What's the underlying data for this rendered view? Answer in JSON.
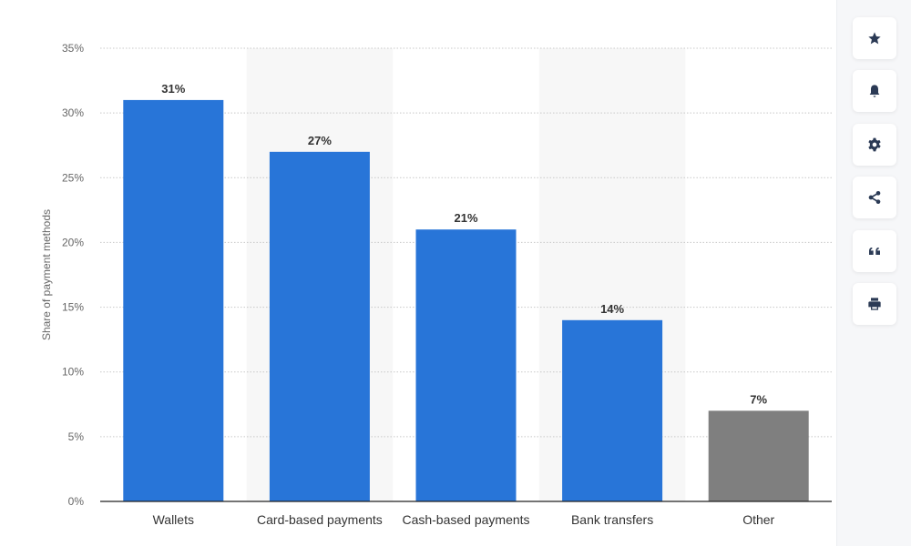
{
  "chart_data": {
    "type": "bar",
    "categories": [
      "Wallets",
      "Card-based payments",
      "Cash-based payments",
      "Bank transfers",
      "Other"
    ],
    "values": [
      31,
      27,
      21,
      14,
      7
    ],
    "value_labels": [
      "31%",
      "27%",
      "21%",
      "14%",
      "7%"
    ],
    "colors": [
      "#2875d8",
      "#2875d8",
      "#2875d8",
      "#2875d8",
      "#7f7f7f"
    ],
    "ylabel": "Share of payment methods",
    "xlabel": "",
    "ylim": [
      0,
      35
    ],
    "yticks": [
      0,
      5,
      10,
      15,
      20,
      25,
      30,
      35
    ],
    "ytick_labels": [
      "0%",
      "5%",
      "10%",
      "15%",
      "20%",
      "25%",
      "30%",
      "35%"
    ],
    "grid": true
  },
  "toolbar": {
    "icons": [
      "star-icon",
      "bell-icon",
      "gear-icon",
      "share-icon",
      "quote-icon",
      "print-icon"
    ]
  }
}
